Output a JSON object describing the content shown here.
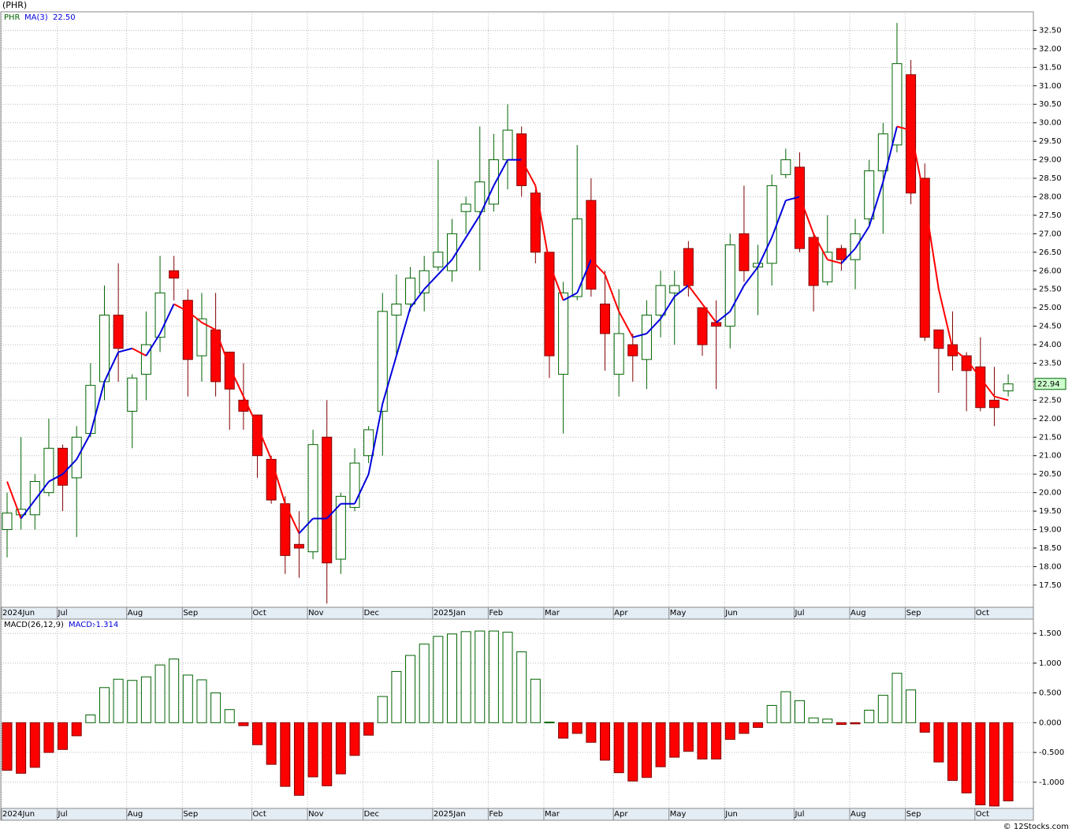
{
  "chart_data": [
    {
      "type": "candlestick",
      "title": "(PHR)",
      "symbol": "PHR",
      "categories": [
        "2024Jun",
        null,
        null,
        null,
        "Jul",
        null,
        null,
        null,
        null,
        "Aug",
        null,
        null,
        null,
        "Sep",
        null,
        null,
        null,
        null,
        "Oct",
        null,
        null,
        null,
        "Nov",
        null,
        null,
        null,
        "Dec",
        null,
        null,
        null,
        null,
        "2025Jan",
        null,
        null,
        null,
        "Feb",
        null,
        null,
        null,
        "Mar",
        null,
        null,
        null,
        null,
        "Apr",
        null,
        null,
        null,
        "May",
        null,
        null,
        null,
        "Jun",
        null,
        null,
        null,
        null,
        "Jul",
        null,
        null,
        null,
        "Aug",
        null,
        null,
        null,
        "Sep",
        null,
        null,
        null,
        null,
        "Oct",
        null,
        null
      ],
      "open": [
        19.0,
        19.4,
        19.4,
        20.0,
        21.2,
        20.4,
        21.6,
        23.0,
        24.8,
        22.2,
        23.2,
        24.2,
        26.0,
        25.2,
        23.7,
        24.4,
        23.8,
        22.5,
        22.1,
        20.9,
        19.7,
        18.6,
        18.4,
        21.5,
        18.2,
        19.6,
        21.0,
        22.2,
        24.8,
        25.1,
        25.4,
        26.1,
        26.0,
        27.6,
        27.6,
        27.8,
        29.0,
        29.7,
        28.1,
        26.5,
        23.2,
        25.3,
        27.9,
        25.1,
        23.2,
        24.0,
        23.6,
        24.8,
        25.4,
        26.6,
        25.0,
        24.6,
        24.5,
        27.0,
        26.1,
        26.2,
        28.6,
        28.8,
        26.9,
        25.7,
        26.6,
        26.3,
        27.4,
        28.7,
        29.4,
        31.3,
        28.5,
        24.4,
        24.0,
        23.7,
        23.4,
        22.5,
        22.75
      ],
      "high": [
        20.0,
        21.5,
        20.5,
        22.0,
        21.3,
        21.8,
        23.5,
        25.6,
        26.2,
        23.2,
        24.9,
        26.4,
        26.4,
        25.5,
        25.4,
        25.4,
        23.8,
        23.5,
        22.1,
        21.0,
        19.9,
        19.5,
        21.7,
        22.5,
        20.0,
        21.2,
        21.8,
        25.4,
        25.9,
        26.1,
        26.4,
        29.0,
        27.4,
        28.0,
        29.9,
        29.7,
        30.5,
        29.9,
        28.2,
        26.5,
        25.7,
        29.4,
        28.5,
        26.0,
        25.5,
        24.3,
        25.2,
        26.0,
        26.0,
        26.8,
        25.0,
        25.2,
        27.0,
        28.3,
        26.7,
        28.6,
        29.3,
        29.2,
        27.0,
        27.5,
        26.7,
        27.4,
        29.0,
        30.0,
        32.7,
        31.7,
        28.9,
        24.4,
        24.9,
        23.8,
        24.2,
        23.4,
        23.2
      ],
      "low": [
        18.25,
        19.0,
        19.0,
        19.9,
        19.5,
        18.8,
        21.5,
        22.5,
        23.0,
        21.2,
        22.5,
        23.8,
        25.2,
        22.6,
        23.0,
        22.6,
        21.7,
        21.7,
        20.4,
        19.7,
        17.8,
        17.7,
        18.2,
        17.0,
        17.8,
        19.5,
        20.8,
        21.0,
        23.7,
        24.9,
        24.9,
        26.0,
        25.7,
        27.0,
        26.0,
        27.6,
        28.2,
        28.0,
        26.2,
        23.1,
        21.6,
        25.2,
        25.3,
        23.3,
        22.6,
        23.0,
        22.8,
        24.2,
        24.0,
        25.3,
        23.7,
        22.8,
        23.9,
        25.7,
        24.8,
        25.6,
        28.5,
        26.5,
        24.9,
        25.6,
        26.0,
        25.5,
        27.2,
        27.0,
        29.2,
        27.8,
        24.1,
        22.7,
        23.3,
        22.2,
        22.2,
        21.8,
        22.6
      ],
      "close": [
        19.45,
        19.55,
        20.3,
        21.2,
        20.2,
        21.5,
        22.9,
        24.8,
        23.9,
        23.1,
        24.0,
        25.4,
        25.8,
        23.6,
        24.7,
        23.0,
        22.8,
        22.2,
        21.0,
        19.8,
        18.3,
        18.5,
        21.3,
        18.1,
        19.9,
        20.8,
        21.7,
        24.9,
        25.1,
        25.8,
        26.0,
        26.5,
        27.0,
        27.8,
        28.4,
        29.0,
        29.8,
        28.3,
        26.5,
        23.7,
        25.4,
        27.4,
        25.5,
        24.3,
        24.3,
        23.7,
        24.8,
        25.6,
        25.6,
        25.6,
        24.0,
        24.5,
        26.7,
        26.0,
        26.2,
        28.3,
        29.0,
        26.6,
        25.6,
        26.5,
        26.3,
        27.0,
        28.7,
        29.7,
        31.6,
        28.1,
        24.2,
        23.9,
        23.7,
        23.3,
        22.3,
        22.3,
        22.94
      ],
      "up_color": "#006400",
      "down_color": "#ff0000",
      "up_fill": "#ffffff",
      "ma": {
        "name": "MA(3)",
        "up_color": "#0000dd",
        "down_color": "#ff0000",
        "value_label": "22.50",
        "values": [
          20.3,
          19.3,
          19.8,
          20.3,
          20.5,
          20.9,
          21.6,
          23.0,
          23.8,
          23.9,
          23.7,
          24.3,
          25.1,
          24.9,
          24.6,
          24.4,
          23.4,
          22.6,
          21.8,
          20.9,
          19.7,
          18.9,
          19.3,
          19.3,
          19.7,
          19.7,
          20.5,
          22.4,
          23.7,
          25.0,
          25.5,
          25.9,
          26.3,
          26.9,
          27.5,
          28.3,
          29.0,
          29.0,
          28.3,
          26.2,
          25.2,
          25.4,
          26.3,
          25.9,
          24.9,
          24.2,
          24.3,
          24.7,
          25.3,
          25.6,
          25.1,
          24.6,
          24.9,
          25.6,
          26.1,
          26.9,
          27.9,
          28.0,
          27.0,
          26.3,
          26.2,
          26.6,
          27.2,
          28.4,
          29.9,
          29.8,
          27.9,
          25.5,
          23.9,
          23.6,
          23.1,
          22.6,
          22.5
        ]
      },
      "ylim": [
        16.9,
        33.0
      ],
      "yticks": [
        {
          "value": 17.5,
          "label": "17.50"
        },
        {
          "value": 18,
          "label": "18.00"
        },
        {
          "value": 18.5,
          "label": "18.50"
        },
        {
          "value": 19,
          "label": "19.00"
        },
        {
          "value": 19.5,
          "label": "19.50"
        },
        {
          "value": 20,
          "label": "20.00"
        },
        {
          "value": 20.5,
          "label": "20.50"
        },
        {
          "value": 21,
          "label": "21.00"
        },
        {
          "value": 21.5,
          "label": "21.50"
        },
        {
          "value": 22,
          "label": "22.00"
        },
        {
          "value": 22.5,
          "label": "22.50"
        },
        {
          "value": 23,
          "label": "23.00"
        },
        {
          "value": 23.5,
          "label": "23.50"
        },
        {
          "value": 24,
          "label": "24.00"
        },
        {
          "value": 24.5,
          "label": "24.50"
        },
        {
          "value": 25,
          "label": "25.00"
        },
        {
          "value": 25.5,
          "label": "25.50"
        },
        {
          "value": 26,
          "label": "26.00"
        },
        {
          "value": 26.5,
          "label": "26.50"
        },
        {
          "value": 27,
          "label": "27.00"
        },
        {
          "value": 27.5,
          "label": "27.50"
        },
        {
          "value": 28,
          "label": "28.00"
        },
        {
          "value": 28.5,
          "label": "28.50"
        },
        {
          "value": 29,
          "label": "29.00"
        },
        {
          "value": 29.5,
          "label": "29.50"
        },
        {
          "value": 30,
          "label": "30.00"
        },
        {
          "value": 30.5,
          "label": "30.50"
        },
        {
          "value": 31,
          "label": "31.00"
        },
        {
          "value": 31.5,
          "label": "31.50"
        },
        {
          "value": 32,
          "label": "32.00"
        },
        {
          "value": 32.5,
          "label": "32.50"
        }
      ],
      "grid": true
    },
    {
      "type": "bar",
      "title": "MACD(26,12,9)",
      "value_name": "MACD:",
      "categories": [
        "2024Jun",
        null,
        null,
        null,
        "Jul",
        null,
        null,
        null,
        null,
        "Aug",
        null,
        null,
        null,
        "Sep",
        null,
        null,
        null,
        null,
        "Oct",
        null,
        null,
        null,
        "Nov",
        null,
        null,
        null,
        "Dec",
        null,
        null,
        null,
        null,
        "2025Jan",
        null,
        null,
        null,
        "Feb",
        null,
        null,
        null,
        "Mar",
        null,
        null,
        null,
        null,
        "Apr",
        null,
        null,
        null,
        "May",
        null,
        null,
        null,
        "Jun",
        null,
        null,
        null,
        null,
        "Jul",
        null,
        null,
        null,
        "Aug",
        null,
        null,
        null,
        "Sep",
        null,
        null,
        null,
        null,
        "Oct",
        null,
        null
      ],
      "values": [
        -0.8,
        -0.85,
        -0.75,
        -0.5,
        -0.45,
        -0.22,
        0.13,
        0.59,
        0.73,
        0.71,
        0.77,
        0.97,
        1.07,
        0.8,
        0.72,
        0.5,
        0.22,
        -0.05,
        -0.37,
        -0.7,
        -1.07,
        -1.22,
        -0.91,
        -1.06,
        -0.86,
        -0.55,
        -0.21,
        0.44,
        0.86,
        1.13,
        1.32,
        1.45,
        1.49,
        1.53,
        1.54,
        1.54,
        1.52,
        1.19,
        0.73,
        0.01,
        -0.26,
        -0.18,
        -0.33,
        -0.63,
        -0.84,
        -0.98,
        -0.92,
        -0.74,
        -0.58,
        -0.48,
        -0.61,
        -0.61,
        -0.28,
        -0.18,
        -0.08,
        0.29,
        0.52,
        0.37,
        0.08,
        0.06,
        -0.03,
        -0.02,
        0.21,
        0.46,
        0.83,
        0.55,
        -0.16,
        -0.66,
        -0.97,
        -1.18,
        -1.38,
        -1.4,
        -1.314
      ],
      "up_color": "#006400",
      "down_color": "#ff0000",
      "ylim": [
        -1.44,
        1.74
      ],
      "yticks": [
        {
          "value": 1.5,
          "label": "1.500"
        },
        {
          "value": 1,
          "label": "1.000"
        },
        {
          "value": 0.5,
          "label": "0.500"
        },
        {
          "value": 0,
          "label": "0.000"
        },
        {
          "value": -0.5,
          "label": "-0.500"
        },
        {
          "value": -1,
          "label": "-1.000"
        }
      ],
      "grid": true
    }
  ],
  "footer": "© 12Stocks.com"
}
